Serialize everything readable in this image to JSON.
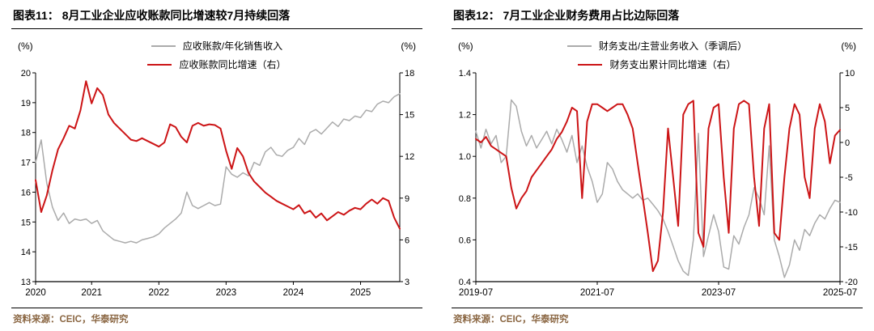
{
  "page": {
    "background": "#ffffff"
  },
  "colors": {
    "gray_series": "#ababab",
    "red_series": "#cc1416",
    "source_text": "#8a6642",
    "axis": "#000000"
  },
  "footer": {
    "source": "资料来源：CEIC，华泰研究"
  },
  "chart_data": [
    {
      "type": "line",
      "title": "图表11：  8月工业企业应收账款同比增速较7月持续回落",
      "left_axis": {
        "unit": "(%)",
        "min": 13,
        "max": 20,
        "ticks": [
          "13",
          "14",
          "15",
          "16",
          "17",
          "18",
          "19",
          "20"
        ]
      },
      "right_axis": {
        "unit": "(%)",
        "min": 3,
        "max": 18,
        "ticks": [
          "3",
          "6",
          "9",
          "12",
          "15",
          "18"
        ]
      },
      "x_axis": {
        "ticks": [
          {
            "label": "2020",
            "index": 0
          },
          {
            "label": "2021",
            "index": 10
          },
          {
            "label": "2022",
            "index": 22
          },
          {
            "label": "2023",
            "index": 34
          },
          {
            "label": "2024",
            "index": 46
          },
          {
            "label": "2025",
            "index": 58
          }
        ]
      },
      "series": [
        {
          "name": "应收账款/年化销售收入",
          "axis": "left",
          "color": "gray",
          "values": [
            17.0,
            17.75,
            16.3,
            15.5,
            15.05,
            15.3,
            14.95,
            15.1,
            15.05,
            15.1,
            14.95,
            15.05,
            14.7,
            14.55,
            14.4,
            14.35,
            14.3,
            14.35,
            14.3,
            14.4,
            14.45,
            14.5,
            14.6,
            14.8,
            14.95,
            15.1,
            15.3,
            16.0,
            15.55,
            15.45,
            15.55,
            15.65,
            15.55,
            15.6,
            16.85,
            16.6,
            16.5,
            16.65,
            16.55,
            17.0,
            16.9,
            17.35,
            17.5,
            17.25,
            17.2,
            17.4,
            17.5,
            17.8,
            17.6,
            18.0,
            18.1,
            17.95,
            18.15,
            18.35,
            18.2,
            18.45,
            18.4,
            18.55,
            18.5,
            18.75,
            18.7,
            18.95,
            19.05,
            19.0,
            19.2,
            19.3
          ]
        },
        {
          "name": "应收账款同比增速（右）",
          "axis": "right",
          "color": "red",
          "values": [
            10.3,
            8.0,
            9.2,
            11.0,
            12.5,
            13.3,
            14.2,
            14.0,
            15.3,
            17.4,
            15.8,
            16.9,
            16.4,
            15.0,
            14.4,
            14.0,
            13.6,
            13.2,
            13.1,
            13.3,
            13.1,
            12.9,
            12.7,
            13.0,
            14.3,
            14.1,
            13.4,
            13.0,
            14.2,
            14.4,
            14.2,
            14.3,
            14.25,
            14.0,
            12.4,
            11.1,
            12.6,
            12.0,
            10.8,
            10.2,
            9.8,
            9.4,
            9.1,
            8.8,
            8.6,
            8.4,
            8.2,
            8.5,
            7.9,
            8.1,
            7.6,
            7.9,
            7.4,
            7.7,
            8.0,
            7.8,
            8.1,
            8.3,
            8.2,
            8.6,
            8.9,
            8.6,
            9.0,
            8.8,
            7.6,
            6.8
          ]
        }
      ]
    },
    {
      "type": "line",
      "title": "图表12：  7月工业企业财务费用占比边际回落",
      "left_axis": {
        "unit": "(%)",
        "min": 0.4,
        "max": 1.4,
        "ticks": [
          "0.4",
          "0.6",
          "0.8",
          "1.0",
          "1.2",
          "1.4"
        ]
      },
      "right_axis": {
        "unit": "(%)",
        "min": -20,
        "max": 10,
        "ticks": [
          "-20",
          "-15",
          "-10",
          "-5",
          "0",
          "5",
          "10"
        ]
      },
      "x_axis": {
        "ticks": [
          {
            "label": "2019-07",
            "index": 0
          },
          {
            "label": "2021-07",
            "index": 24
          },
          {
            "label": "2023-07",
            "index": 48
          },
          {
            "label": "2025-07",
            "index": 72
          }
        ]
      },
      "series": [
        {
          "name": "财务支出/主营业务收入（季调后）",
          "axis": "left",
          "color": "gray",
          "values": [
            1.12,
            1.04,
            1.13,
            1.06,
            1.1,
            0.97,
            1.0,
            1.27,
            1.24,
            1.12,
            1.05,
            1.1,
            1.04,
            1.08,
            1.12,
            1.06,
            1.13,
            1.08,
            1.02,
            1.1,
            0.97,
            1.05,
            0.95,
            0.88,
            0.78,
            0.82,
            0.97,
            0.94,
            0.88,
            0.84,
            0.82,
            0.8,
            0.82,
            0.79,
            0.8,
            0.77,
            0.74,
            0.7,
            0.64,
            0.57,
            0.5,
            0.45,
            0.43,
            0.6,
            1.11,
            0.52,
            0.62,
            0.72,
            0.64,
            0.47,
            0.46,
            0.62,
            0.58,
            0.66,
            0.72,
            0.85,
            0.8,
            0.72,
            1.05,
            0.6,
            0.52,
            0.42,
            0.48,
            0.6,
            0.55,
            0.65,
            0.62,
            0.68,
            0.72,
            0.7,
            0.75,
            0.79,
            0.78
          ]
        },
        {
          "name": "财务支出累计同比增速（右）",
          "axis": "right",
          "color": "red",
          "values": [
            0.5,
            0.0,
            0.8,
            -0.5,
            -1.0,
            -1.5,
            -2,
            -6.5,
            -9.5,
            -8,
            -7,
            -5,
            -4,
            -3,
            -2,
            -1,
            0.5,
            1.5,
            3,
            5,
            4.5,
            -8,
            3,
            5.5,
            5.5,
            5,
            4.5,
            5,
            5.5,
            5.5,
            4,
            2,
            -3,
            -8,
            -13,
            -18.5,
            -17,
            -10,
            2,
            -5,
            -12,
            4,
            5.5,
            6,
            -13,
            -15,
            2,
            5,
            5.5,
            -5,
            -13,
            2,
            5.5,
            6,
            5.5,
            -5,
            -12,
            2,
            5.5,
            -13,
            -14,
            -5,
            2,
            5.5,
            4,
            -5,
            -8,
            2,
            5.5,
            3,
            -3,
            1,
            1.8
          ]
        }
      ]
    }
  ]
}
